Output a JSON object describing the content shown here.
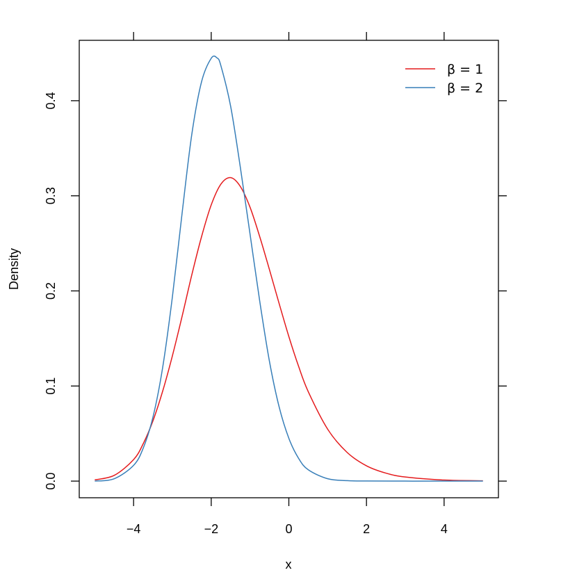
{
  "chart_data": {
    "type": "line",
    "xlabel": "x",
    "ylabel": "Density",
    "xlim": [
      -5.4,
      5.4
    ],
    "ylim": [
      -0.0175,
      0.4635
    ],
    "x_ticks": [
      -4,
      -2,
      0,
      2,
      4
    ],
    "x_tick_labels": [
      "−4",
      "−2",
      "0",
      "2",
      "4"
    ],
    "y_ticks": [
      0.0,
      0.1,
      0.2,
      0.3,
      0.4
    ],
    "y_tick_labels": [
      "0.0",
      "0.1",
      "0.2",
      "0.3",
      "0.4"
    ],
    "top_ticks": [
      -4,
      -2,
      0,
      2,
      4
    ],
    "right_ticks": [
      0.0,
      0.1,
      0.2,
      0.3,
      0.4
    ],
    "grid": false,
    "legend_position": "top-right",
    "series": [
      {
        "name": "β = 1",
        "color": "#e41a1c",
        "x": [
          -5.0,
          -4.5,
          -4.0,
          -3.75,
          -3.5,
          -3.25,
          -3.0,
          -2.75,
          -2.5,
          -2.25,
          -2.0,
          -1.75,
          -1.5,
          -1.25,
          -1.0,
          -0.75,
          -0.5,
          -0.25,
          0.0,
          0.25,
          0.5,
          1.0,
          1.5,
          2.0,
          2.5,
          3.0,
          4.0,
          5.0
        ],
        "y": [
          0.0013,
          0.006,
          0.0226,
          0.0395,
          0.0635,
          0.0947,
          0.1318,
          0.1733,
          0.2169,
          0.2569,
          0.2904,
          0.3123,
          0.3191,
          0.3098,
          0.288,
          0.257,
          0.2224,
          0.1867,
          0.152,
          0.1208,
          0.094,
          0.0546,
          0.0302,
          0.0161,
          0.0084,
          0.0043,
          0.0011,
          0.0003
        ]
      },
      {
        "name": "β = 2",
        "color": "#377eb8",
        "x": [
          -5.0,
          -4.5,
          -4.0,
          -3.75,
          -3.5,
          -3.25,
          -3.0,
          -2.75,
          -2.5,
          -2.25,
          -2.0,
          -1.85,
          -1.75,
          -1.5,
          -1.25,
          -1.0,
          -0.75,
          -0.5,
          -0.25,
          0.0,
          0.25,
          0.5,
          1.0,
          1.5,
          2.0,
          3.0,
          4.0,
          5.0
        ],
        "y": [
          0.0,
          0.0025,
          0.0166,
          0.0349,
          0.0674,
          0.1197,
          0.1938,
          0.2818,
          0.3647,
          0.4198,
          0.4446,
          0.445,
          0.4367,
          0.3942,
          0.33,
          0.2598,
          0.1892,
          0.126,
          0.078,
          0.045,
          0.024,
          0.0119,
          0.0025,
          0.0005,
          0.0001,
          0.0,
          0.0,
          0.0
        ]
      }
    ]
  }
}
